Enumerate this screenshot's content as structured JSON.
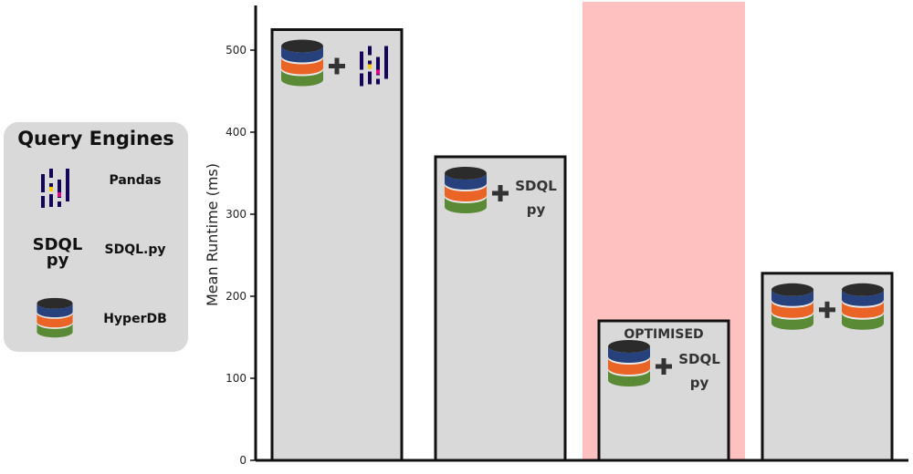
{
  "legend": {
    "title": "Query Engines",
    "items": [
      {
        "label": "Pandas",
        "icon": "pandas-icon"
      },
      {
        "label": "SDQL.py",
        "icon": "sdql-text-icon"
      },
      {
        "label": "HyperDB",
        "icon": "database-icon"
      }
    ]
  },
  "sdql_logo": {
    "line1": "SDQL",
    "line2": "py"
  },
  "chart_data": {
    "type": "bar",
    "ylabel": "Mean Runtime (ms)",
    "ylim": [
      0,
      550
    ],
    "yticks": [
      0,
      100,
      200,
      300,
      400,
      500
    ],
    "highlighted_index": 2,
    "colors": {
      "bar": "#d9d9d9",
      "highlight": "#ffc0c0",
      "db_top": "#2b2b2b",
      "db_blue": "#27417d",
      "db_orange": "#e96425",
      "db_green": "#5a8a35"
    },
    "bars": [
      {
        "value": 525,
        "icons": [
          "database-icon",
          "pandas-icon"
        ]
      },
      {
        "value": 370,
        "icons": [
          "database-icon",
          "sdql-text-icon"
        ]
      },
      {
        "value": 170,
        "badge": "OPTIMISED",
        "icons": [
          "database-icon",
          "sdql-text-icon"
        ]
      },
      {
        "value": 228,
        "icons": [
          "database-icon",
          "database-icon"
        ]
      }
    ]
  }
}
